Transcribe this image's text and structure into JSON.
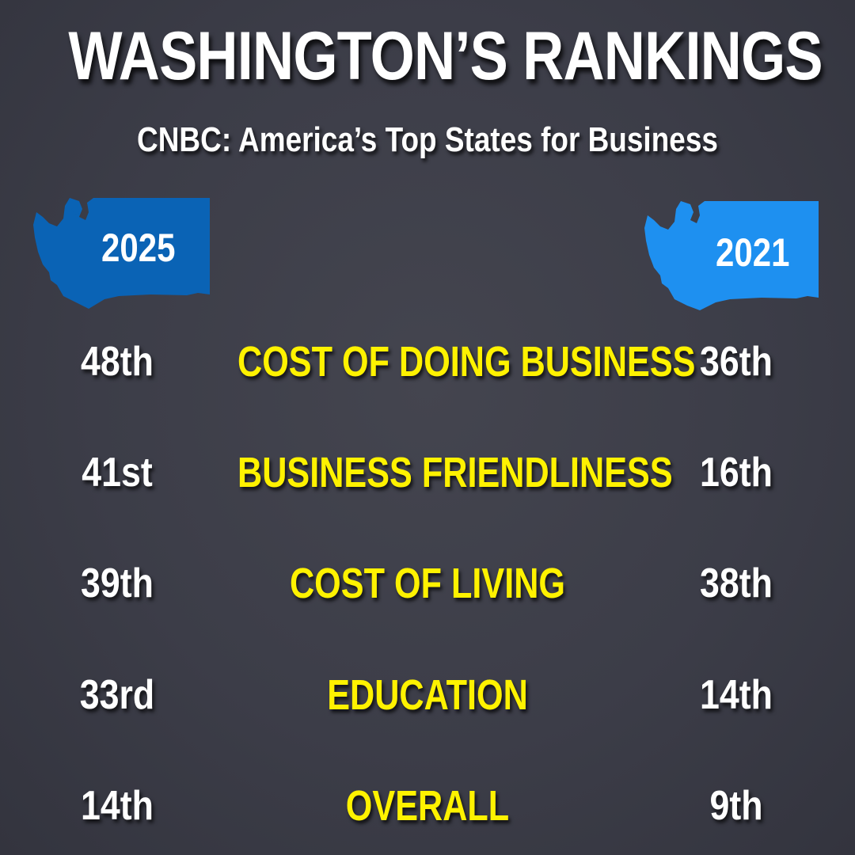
{
  "title": "WASHINGTON’S RANKINGS",
  "subtitle": "CNBC: America’s Top States for Business",
  "badges": [
    {
      "year": "2025",
      "color": "#0a63b5",
      "icon": "washington-state-map-icon"
    },
    {
      "year": "2021",
      "color": "#1e90f0",
      "icon": "washington-state-map-icon"
    }
  ],
  "colors": {
    "background": "#3d3e4a",
    "metric_text": "#fff200",
    "rank_text": "#ffffff"
  },
  "rows": [
    {
      "metric": "COST OF DOING BUSINESS",
      "rank_2025": "48th",
      "rank_2021": "36th"
    },
    {
      "metric": "BUSINESS FRIENDLINESS",
      "rank_2025": "41st",
      "rank_2021": "16th"
    },
    {
      "metric": "COST OF LIVING",
      "rank_2025": "39th",
      "rank_2021": "38th"
    },
    {
      "metric": "EDUCATION",
      "rank_2025": "33rd",
      "rank_2021": "14th"
    },
    {
      "metric": "OVERALL",
      "rank_2025": "14th",
      "rank_2021": "9th"
    }
  ]
}
